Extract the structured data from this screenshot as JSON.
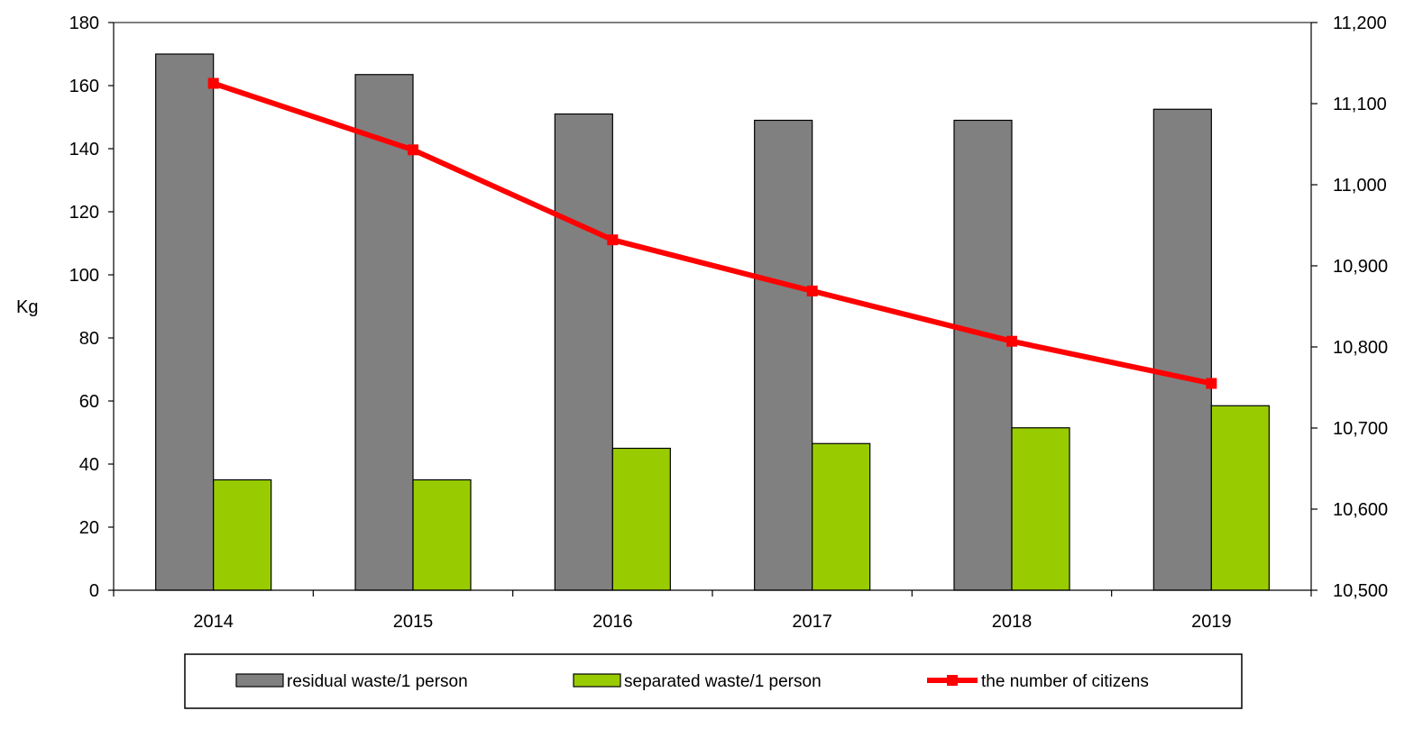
{
  "chart_data": {
    "type": "bar",
    "categories": [
      "2014",
      "2015",
      "2016",
      "2017",
      "2018",
      "2019"
    ],
    "ylabel": "Kg",
    "ylim": [
      0,
      180
    ],
    "y_ticks": [
      "0",
      "20",
      "40",
      "60",
      "80",
      "100",
      "120",
      "140",
      "160",
      "180"
    ],
    "y2lim": [
      10500,
      11200
    ],
    "y2_ticks": [
      "10,500",
      "10,600",
      "10,700",
      "10,800",
      "10,900",
      "11,000",
      "11,100",
      "11,200"
    ],
    "legend_position": "bottom",
    "series": [
      {
        "name": "residual waste/1 person",
        "type": "bar",
        "axis": "left",
        "color": "#808080",
        "values": [
          170,
          163.5,
          151,
          149,
          149,
          152.5
        ]
      },
      {
        "name": "separated waste/1 person",
        "type": "bar",
        "axis": "left",
        "color": "#99cc00",
        "values": [
          35,
          35,
          45,
          46.5,
          51.5,
          58.5
        ]
      },
      {
        "name": "the number of citizens",
        "type": "line",
        "axis": "right",
        "color": "#ff0000",
        "values": [
          11125,
          11043,
          10932,
          10869,
          10807,
          10755
        ]
      }
    ]
  }
}
